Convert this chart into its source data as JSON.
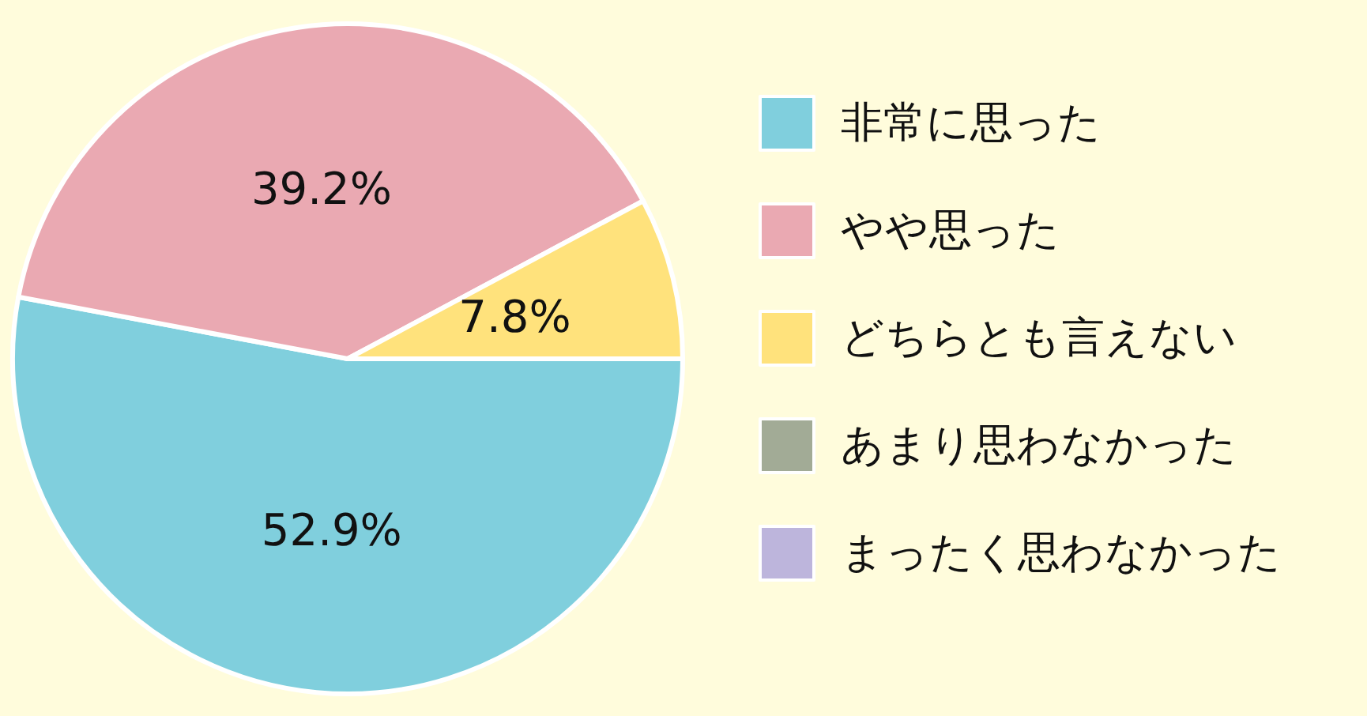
{
  "chart_data": {
    "type": "pie",
    "categories": [
      "非常に思った",
      "やや思った",
      "どちらとも言えない",
      "あまり思わなかった",
      "まったく思わなかった"
    ],
    "values": [
      52.9,
      39.2,
      7.8,
      0,
      0
    ],
    "value_labels": [
      "52.9%",
      "39.2%",
      "7.8%",
      null,
      null
    ],
    "colors": [
      "#80cfdd",
      "#eaa9b2",
      "#ffe27c",
      "#a2ab96",
      "#bdb5dc"
    ],
    "legend": "right"
  }
}
